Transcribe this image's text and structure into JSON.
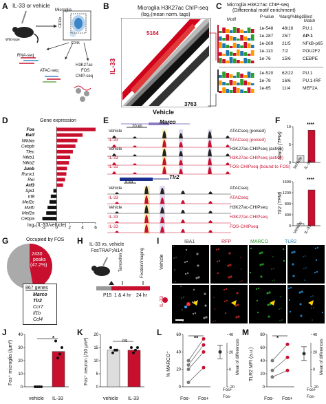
{
  "panels": {
    "A": "A",
    "B": "B",
    "C": "C",
    "D": "D",
    "E": "E",
    "F": "F",
    "G": "G",
    "H": "H",
    "I": "I",
    "J": "J",
    "K": "K",
    "L": "L",
    "M": "M"
  },
  "A": {
    "treatment": "IL-33 or vehicle",
    "mouse": "Wild-type",
    "sort_label": "Microglia",
    "y_marker": "CD11b",
    "x_marker": "CD45",
    "rnaseq": "RNA-seq",
    "atacseq": "ATAC-seq",
    "chipseq_line1": "H3K27ac",
    "chipseq_line2": "FOS",
    "chipseq_line3": "ChIP-seq"
  },
  "B": {
    "title": "Microglia H3K27ac ChIP-seq",
    "subtitle": "(log₂(mean norm. tags)",
    "ylabel": "IL-33",
    "xlabel": "Vehicle",
    "up_count": "5164",
    "down_count": "3763"
  },
  "C": {
    "title_line1": "Microglia H3K27ac ChIP-seq",
    "title_line2": "(Differential motif enrichment)",
    "headers": [
      "Motif",
      "P-value",
      "%targ/%bkgd",
      "Best Match"
    ],
    "upper_rows": [
      {
        "p": "1e-548",
        "pct": "48/16",
        "match": "PU.1"
      },
      {
        "p": "1e-287",
        "pct": "25/7",
        "match": "AP-1"
      },
      {
        "p": "1e-269",
        "pct": "21/5",
        "match": "NFkB-p65"
      },
      {
        "p": "1e-113",
        "pct": "7/2",
        "match": "POU2F2"
      },
      {
        "p": "1e-76",
        "pct": "15/6",
        "match": "CEBPE"
      }
    ],
    "lower_rows": [
      {
        "p": "1e-520",
        "pct": "62/22",
        "match": "PU.1"
      },
      {
        "p": "1e-78",
        "pct": "16/6",
        "match": "PU.1-IRF"
      },
      {
        "p": "1e-65",
        "pct": "11/4",
        "match": "MEF2A"
      }
    ]
  },
  "D": {
    "title": "Gene expression",
    "xlabel": "log₂(IL-33/vehicle)",
    "chart_data": {
      "type": "bar",
      "orientation": "horizontal",
      "categories": [
        "Fos",
        "Batf",
        "Nfkbia",
        "Cebpb",
        "Tfec",
        "Nfkb1",
        "Nfkb2",
        "Junb",
        "Runx1",
        "Rel",
        "Atf3",
        "Spi1",
        "Irf8",
        "Mef2c",
        "Mafb",
        "Mef2a",
        "Cebpa"
      ],
      "values": [
        6.0,
        4.0,
        3.2,
        2.9,
        2.5,
        2.1,
        1.9,
        1.6,
        1.5,
        1.3,
        1.0,
        -0.5,
        -0.9,
        -1.1,
        -1.4,
        -1.6,
        -2.2
      ],
      "xlim": [
        -3,
        6
      ],
      "xticks": [
        -2,
        0,
        2,
        4,
        6
      ],
      "xlabel": "log₂(IL-33/vehicle)",
      "title": "Gene expression"
    }
  },
  "E": {
    "marco_gene": "Marco",
    "tlr2_gene": "Tlr2",
    "scale1": "20 kb",
    "scale2": "5 kb",
    "tracks": [
      {
        "cond": "Vehicle",
        "label": "ATACseq (poised)",
        "red": false
      },
      {
        "cond": "IL-33",
        "label": "ATACseq (poised)",
        "red": true
      },
      {
        "cond": "Vehicle",
        "label": "H3K27ac-CHIPseq (active)",
        "red": false
      },
      {
        "cond": "IL-33",
        "label": "H3K27ac-CHIPseq (active)",
        "red": true
      },
      {
        "cond": "IL-33",
        "label": "FOS-CHIPseq (bound to FOS)",
        "red": true
      }
    ],
    "tracks2": [
      {
        "cond": "Vehicle",
        "label": "ATACseq",
        "red": false
      },
      {
        "cond": "IL-33",
        "label": "ATACseq",
        "red": true
      },
      {
        "cond": "Vehicle",
        "label": "H3K27ac-CHIPseq",
        "red": false
      },
      {
        "cond": "IL-33",
        "label": "H3K27ac-CHIPseq",
        "red": true
      },
      {
        "cond": "IL-33",
        "label": "FOS-CHIPseq",
        "red": true
      }
    ]
  },
  "F": {
    "sig": "****",
    "ylabel1": "Marco (TPM)",
    "ylabel2": "Tlr2 (TPM)",
    "cats": [
      "Vehicle",
      "IL-33"
    ],
    "chart_data": [
      {
        "type": "bar",
        "categories": [
          "Vehicle",
          "IL-33"
        ],
        "values": [
          2,
          9
        ],
        "ylim": [
          0,
          10
        ],
        "yticks": [
          0,
          5,
          10
        ],
        "ylabel": "Marco (TPM)"
      },
      {
        "type": "bar",
        "categories": [
          "Vehicle",
          "IL-33"
        ],
        "values": [
          80,
          1300
        ],
        "ylim": [
          0,
          1600
        ],
        "yticks": [
          0,
          200,
          400,
          600,
          800,
          1000,
          1200,
          1400,
          1600
        ],
        "ylabel": "Tlr2 (TPM)"
      }
    ]
  },
  "G": {
    "title": "Occupied by FOS",
    "peaks": "2430",
    "peaks_pct": "peaks",
    "pct": "(47.2%)",
    "genes": "867 genes",
    "gene_list": [
      "Marco",
      "Tlr2",
      "Ccr7",
      "Il1b",
      "Ccl4"
    ],
    "chart_data": {
      "type": "pie",
      "values": [
        47.2,
        52.8
      ],
      "categories": [
        "Occupied by FOS",
        "Other"
      ]
    }
  },
  "H": {
    "line1": "IL-33 vs. vehicle",
    "line2": "FosTRAP;Ai14",
    "tam": "Tamoxifen",
    "fix": "Fixation/imaging",
    "p15": "P15",
    "t1": "1 & 4 hr",
    "t2": "24 hr"
  },
  "I": {
    "cols": [
      "IBA1",
      "RFP",
      "MARCO",
      "TLR2"
    ],
    "rows": [
      "Vehicle",
      "IL-33"
    ]
  },
  "J": {
    "ylabel": "Fos⁺ microglia (/µm²)",
    "sig": "*",
    "cats": [
      "vehicle",
      "IL-33"
    ],
    "chart_data": {
      "type": "bar",
      "categories": [
        "vehicle",
        "IL-33"
      ],
      "values": [
        0,
        27
      ],
      "ylim": [
        0,
        40
      ],
      "yticks": [
        0,
        10,
        20,
        30,
        40
      ],
      "points": [
        [
          0,
          0,
          0,
          0
        ],
        [
          35,
          22,
          25,
          30
        ]
      ]
    }
  },
  "K": {
    "ylabel": "Fos⁺ neuron (/10 µm²)",
    "sig": "ns",
    "cats": [
      "vehicle",
      "IL-33"
    ],
    "chart_data": {
      "type": "bar",
      "categories": [
        "vehicle",
        "IL-33"
      ],
      "values": [
        14,
        14
      ],
      "ylim": [
        0,
        20
      ],
      "yticks": [
        0,
        5,
        10,
        15,
        20
      ],
      "points": [
        [
          15,
          13,
          14,
          14
        ],
        [
          15,
          13,
          14,
          15
        ]
      ]
    }
  },
  "L": {
    "ylabel": "% MARCO⁺",
    "sig": "**",
    "xl": [
      "Fos-",
      "Fos+"
    ],
    "diff_label": "Fos+\nFos-",
    "mean_diff": "Mean of differences",
    "xl2_top": "Fos+",
    "xl2_bot": "Fos-",
    "chart_data": {
      "type": "scatter",
      "ylim": [
        0,
        60
      ],
      "yticks": [
        0,
        20,
        40,
        60
      ],
      "pairs": [
        [
          30,
          55
        ],
        [
          25,
          48
        ],
        [
          20,
          40
        ],
        [
          5,
          22
        ]
      ],
      "diff_ylim": [
        -20,
        40
      ],
      "diff_yticks": [
        -20,
        0,
        20,
        40
      ],
      "diff_mean": 20
    }
  },
  "M": {
    "ylabel": "TLR2 MFI (a.u.)",
    "sig": "*",
    "xl": [
      "Fos-",
      "Fos+"
    ],
    "mean_diff": "Mean of differences",
    "xl2_top": "Fos+",
    "xl2_bot": "Fos-",
    "chart_data": {
      "type": "scatter",
      "ylim": [
        0,
        80
      ],
      "yticks": [
        0,
        20,
        40,
        60,
        80
      ],
      "pairs": [
        [
          40,
          65
        ],
        [
          25,
          45
        ],
        [
          15,
          25
        ]
      ],
      "diff_ylim": [
        -20,
        40
      ],
      "diff_yticks": [
        -20,
        0,
        20,
        40
      ],
      "diff_mean": 18
    }
  }
}
